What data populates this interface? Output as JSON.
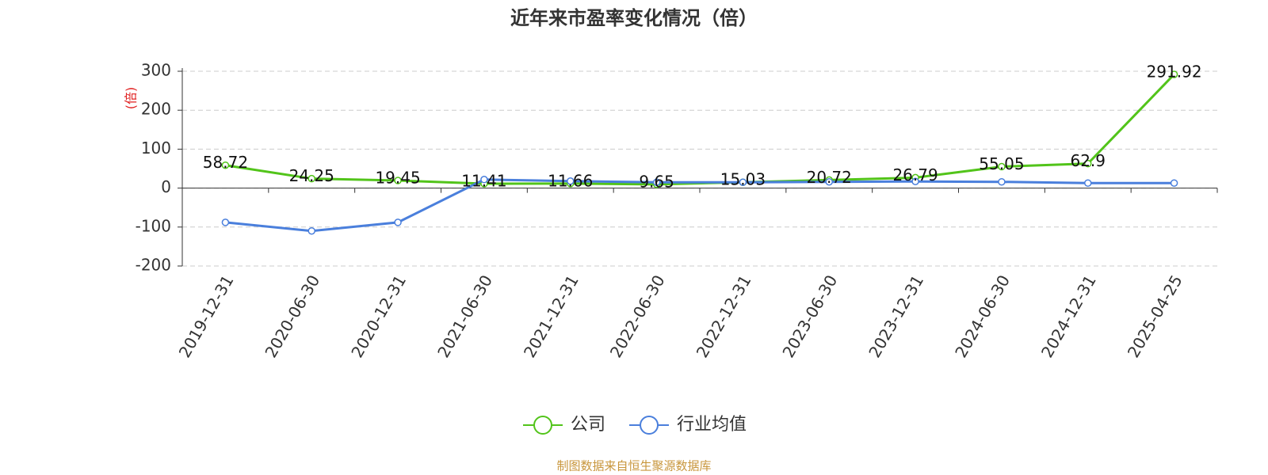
{
  "chart_data": {
    "type": "line",
    "title": "近年来市盈率变化情况（倍）",
    "y_label": "(倍)",
    "source": "制图数据来自恒生聚源数据库",
    "categories": [
      "2019-12-31",
      "2020-06-30",
      "2020-12-31",
      "2021-06-30",
      "2021-12-31",
      "2022-06-30",
      "2022-12-31",
      "2023-06-30",
      "2023-12-31",
      "2024-06-30",
      "2024-12-31",
      "2025-04-25"
    ],
    "series": [
      {
        "name": "公司",
        "color": "#52c41a",
        "values": [
          58.72,
          24.25,
          19.45,
          11.41,
          11.66,
          9.65,
          15.03,
          20.72,
          26.79,
          55.05,
          62.9,
          291.92
        ]
      },
      {
        "name": "行业均值",
        "color": "#4a7fdc",
        "values": [
          -88,
          -110,
          -88,
          22,
          18,
          15,
          15,
          16,
          17,
          16,
          13,
          13
        ]
      }
    ],
    "ylim": [
      -200,
      300
    ],
    "yticks": [
      -200,
      -100,
      0,
      100,
      200,
      300
    ],
    "grid": true
  }
}
